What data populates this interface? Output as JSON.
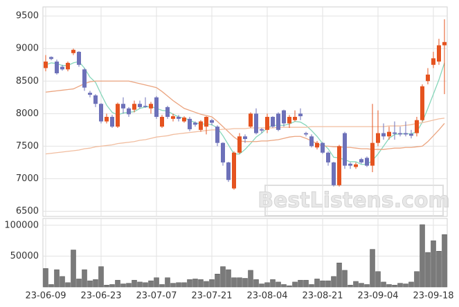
{
  "chart_data": [
    {
      "type": "candlestick",
      "watermark": "BestListens.com",
      "up_color": "#e5531f",
      "down_color": "#6d71b9",
      "ylim": [
        6420,
        9640
      ],
      "yticks": [
        6500,
        7000,
        7500,
        8000,
        8500,
        9000,
        9500
      ],
      "grid": true,
      "open": [
        8700,
        8870,
        8800,
        8720,
        8680,
        8930,
        8950,
        8680,
        8320,
        8280,
        8150,
        7880,
        7950,
        7800,
        8150,
        8080,
        8060,
        8150,
        8120,
        8080,
        8250,
        7800,
        8100,
        7920,
        7950,
        7880,
        7920,
        7860,
        7750,
        7800,
        7900,
        7800,
        7550,
        7250,
        6850,
        7400,
        7650,
        7800,
        8000,
        7760,
        7750,
        7950,
        8000,
        8050,
        7850,
        7900,
        8000,
        7700,
        7650,
        7480,
        7550,
        7400,
        7250,
        6900,
        7700,
        7230,
        7180,
        7300,
        7320,
        7200,
        7550,
        7700,
        7650,
        7710,
        7700,
        7700,
        7690,
        7700,
        7900,
        8500,
        8750,
        8800,
        9050
      ],
      "high": [
        8900,
        8880,
        8830,
        8750,
        8800,
        9000,
        8960,
        8700,
        8350,
        8300,
        8160,
        8000,
        7980,
        8170,
        8250,
        8100,
        8200,
        8200,
        8250,
        8180,
        8270,
        7980,
        8120,
        8000,
        7980,
        7960,
        7950,
        7880,
        7900,
        7960,
        7920,
        7820,
        7560,
        7260,
        7420,
        7700,
        7680,
        8020,
        8080,
        7780,
        8000,
        7960,
        8020,
        8060,
        7980,
        8050,
        8080,
        7720,
        7680,
        7580,
        7560,
        7420,
        7260,
        7520,
        7720,
        7250,
        7250,
        7320,
        7340,
        8150,
        8050,
        7850,
        7800,
        7880,
        7800,
        7880,
        7750,
        7950,
        8450,
        8700,
        8950,
        9150,
        9450
      ],
      "low": [
        8650,
        8820,
        8600,
        8660,
        8650,
        8900,
        8720,
        8350,
        8250,
        8100,
        7850,
        7850,
        7780,
        7780,
        8000,
        7950,
        8020,
        8080,
        8090,
        8000,
        7920,
        7780,
        7920,
        7880,
        7880,
        7860,
        7730,
        7800,
        7720,
        7680,
        7820,
        7500,
        7200,
        6950,
        6830,
        7380,
        7550,
        7780,
        7680,
        7700,
        7700,
        7780,
        7730,
        7800,
        7780,
        7880,
        7900,
        7650,
        7480,
        7450,
        7380,
        7200,
        6880,
        6880,
        7150,
        7150,
        7150,
        7230,
        7180,
        7100,
        7500,
        7600,
        7600,
        7600,
        7650,
        7650,
        7620,
        7650,
        7880,
        8450,
        8700,
        8750,
        8300
      ],
      "close": [
        8800,
        8840,
        8620,
        8680,
        8780,
        8980,
        8750,
        8400,
        8290,
        8150,
        7880,
        7950,
        7800,
        8150,
        8080,
        7990,
        8150,
        8100,
        8110,
        8150,
        7950,
        7950,
        7950,
        7960,
        7920,
        7940,
        7760,
        7830,
        7880,
        7950,
        7860,
        7550,
        7250,
        6980,
        7400,
        7650,
        7610,
        8000,
        7700,
        7740,
        7950,
        7800,
        7750,
        7850,
        7950,
        7950,
        7960,
        7680,
        7500,
        7550,
        7400,
        7250,
        6900,
        7500,
        7200,
        7200,
        7220,
        7250,
        7200,
        7550,
        7700,
        7650,
        7720,
        7690,
        7680,
        7680,
        7660,
        7900,
        8420,
        8600,
        8850,
        9050,
        9100
      ],
      "series": [
        {
          "color": "#86d6ba",
          "values": [
            8750,
            8780,
            8770,
            8740,
            8740,
            8780,
            8800,
            8700,
            8560,
            8480,
            8300,
            8130,
            8020,
            7980,
            8010,
            8020,
            8030,
            8080,
            8100,
            8110,
            8080,
            8050,
            8040,
            7990,
            7950,
            7930,
            7900,
            7860,
            7840,
            7840,
            7830,
            7780,
            7660,
            7520,
            7380,
            7380,
            7450,
            7540,
            7640,
            7700,
            7780,
            7820,
            7820,
            7820,
            7840,
            7880,
            7870,
            7820,
            7740,
            7650,
            7540,
            7460,
            7330,
            7320,
            7290,
            7260,
            7260,
            7220,
            7220,
            7280,
            7380,
            7500,
            7620,
            7680,
            7690,
            7690,
            7690,
            7720,
            7870,
            8080,
            8300,
            8520,
            8780
          ]
        },
        {
          "color": "#eba47f",
          "values": [
            8330,
            8340,
            8350,
            8360,
            8370,
            8380,
            8420,
            8460,
            8490,
            8500,
            8500,
            8500,
            8500,
            8500,
            8500,
            8500,
            8480,
            8460,
            8440,
            8420,
            8400,
            8340,
            8270,
            8200,
            8140,
            8080,
            8050,
            8020,
            7990,
            7970,
            7950,
            7880,
            7800,
            7720,
            7640,
            7580,
            7570,
            7570,
            7570,
            7580,
            7580,
            7590,
            7600,
            7620,
            7640,
            7650,
            7650,
            7620,
            7580,
            7540,
            7500,
            7500,
            7490,
            7490,
            7480,
            7480,
            7470,
            7460,
            7460,
            7450,
            7450,
            7450,
            7460,
            7470,
            7470,
            7480,
            7480,
            7490,
            7500,
            7570,
            7660,
            7750,
            7850
          ]
        },
        {
          "color": "#f1bd9f",
          "values": [
            7380,
            7390,
            7400,
            7410,
            7420,
            7430,
            7440,
            7460,
            7470,
            7490,
            7500,
            7510,
            7520,
            7540,
            7550,
            7560,
            7570,
            7590,
            7600,
            7620,
            7640,
            7650,
            7660,
            7680,
            7690,
            7700,
            7710,
            7720,
            7730,
            7740,
            7750,
            7750,
            7760,
            7760,
            7770,
            7770,
            7770,
            7780,
            7780,
            7780,
            7780,
            7780,
            7790,
            7790,
            7790,
            7790,
            7790,
            7790,
            7800,
            7800,
            7800,
            7800,
            7800,
            7800,
            7800,
            7800,
            7800,
            7800,
            7800,
            7800,
            7800,
            7800,
            7810,
            7810,
            7810,
            7820,
            7830,
            7850,
            7860,
            7880,
            7900,
            7920,
            7930
          ]
        }
      ]
    },
    {
      "type": "bar",
      "color": "#7a7a7a",
      "ylim": [
        0,
        111000
      ],
      "yticks": [
        50000,
        100000
      ],
      "grid": true,
      "categories": [
        "23-06-09",
        null,
        null,
        null,
        null,
        null,
        null,
        null,
        null,
        null,
        "23-06-23",
        null,
        null,
        null,
        null,
        null,
        null,
        null,
        null,
        null,
        "23-07-07",
        null,
        null,
        null,
        null,
        null,
        null,
        null,
        null,
        null,
        "23-07-21",
        null,
        null,
        null,
        null,
        null,
        null,
        null,
        null,
        null,
        "23-08-04",
        null,
        null,
        null,
        null,
        null,
        null,
        null,
        null,
        null,
        "23-08-21",
        null,
        null,
        null,
        null,
        null,
        null,
        null,
        null,
        null,
        "23-09-04",
        null,
        null,
        null,
        null,
        null,
        null,
        null,
        null,
        null,
        "23-09-18",
        null,
        null
      ],
      "values": [
        30000,
        4000,
        28000,
        17000,
        7000,
        60000,
        13000,
        28000,
        10000,
        12000,
        33000,
        3000,
        4000,
        11000,
        5000,
        6000,
        11000,
        8000,
        7000,
        10000,
        15000,
        4000,
        15000,
        6000,
        7000,
        7000,
        12000,
        13000,
        12000,
        9000,
        12000,
        21000,
        33000,
        28000,
        15000,
        15000,
        14000,
        27000,
        12000,
        5000,
        7000,
        12000,
        8000,
        4000,
        2000,
        8000,
        11000,
        11000,
        4000,
        13000,
        10000,
        10000,
        17000,
        39000,
        27000,
        3000,
        9000,
        6000,
        4000,
        61000,
        25000,
        8000,
        4000,
        3000,
        6000,
        5000,
        8000,
        25000,
        101000,
        56000,
        75000,
        58000,
        85000
      ]
    }
  ]
}
